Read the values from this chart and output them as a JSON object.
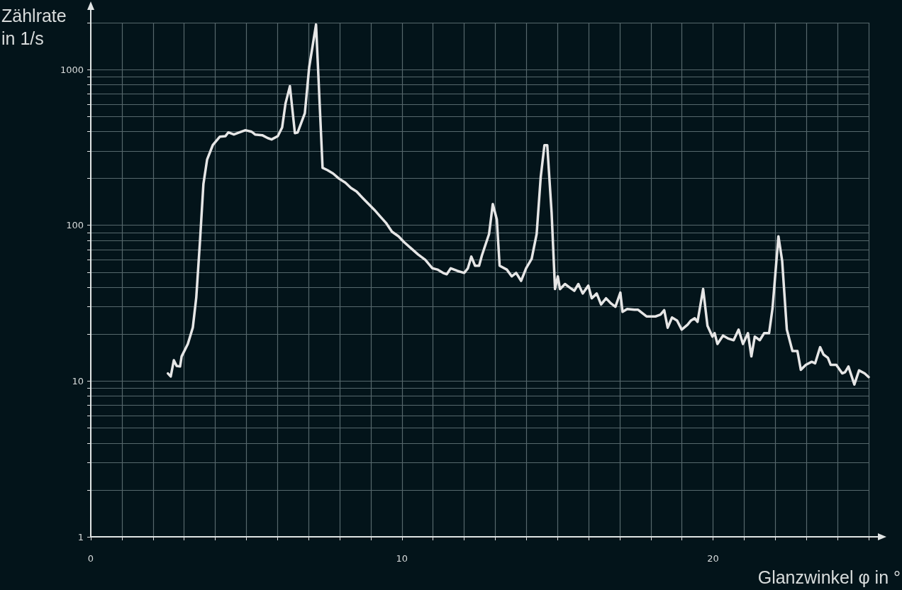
{
  "chart_data": {
    "type": "line",
    "xlabel": "Glanzwinkel φ in °",
    "ylabel": "Zählrate in 1/s",
    "log": "y",
    "grid": true,
    "marker": "none",
    "line_style": "solid",
    "xlim": [
      0,
      25
    ],
    "ylim": [
      1,
      2000
    ],
    "xticks": [
      0,
      {
        "value": 1,
        "label": null
      },
      {
        "value": 2,
        "label": null
      },
      {
        "value": 3,
        "label": null
      },
      {
        "value": 4,
        "label": null
      },
      {
        "value": 5,
        "label": null
      },
      {
        "value": 6,
        "label": null
      },
      {
        "value": 7,
        "label": null
      },
      {
        "value": 8,
        "label": null
      },
      {
        "value": 9,
        "label": null
      },
      10,
      {
        "value": 11,
        "label": null
      },
      {
        "value": 12,
        "label": null
      },
      {
        "value": 13,
        "label": null
      },
      {
        "value": 14,
        "label": null
      },
      {
        "value": 15,
        "label": null
      },
      {
        "value": 16,
        "label": null
      },
      {
        "value": 17,
        "label": null
      },
      {
        "value": 18,
        "label": null
      },
      {
        "value": 19,
        "label": null
      },
      20,
      {
        "value": 21,
        "label": null
      },
      {
        "value": 22,
        "label": null
      },
      {
        "value": 23,
        "label": null
      },
      {
        "value": 24,
        "label": null
      },
      {
        "value": 25,
        "label": null
      }
    ],
    "yticks": [
      1,
      {
        "value": 2,
        "label": null
      },
      {
        "value": 3,
        "label": null
      },
      {
        "value": 4,
        "label": null
      },
      {
        "value": 5,
        "label": null
      },
      {
        "value": 6,
        "label": null
      },
      {
        "value": 7,
        "label": null
      },
      {
        "value": 8,
        "label": null
      },
      {
        "value": 9,
        "label": null
      },
      10,
      {
        "value": 20,
        "label": null
      },
      {
        "value": 30,
        "label": null
      },
      {
        "value": 40,
        "label": null
      },
      {
        "value": 50,
        "label": null
      },
      {
        "value": 60,
        "label": null
      },
      {
        "value": 70,
        "label": null
      },
      {
        "value": 80,
        "label": null
      },
      {
        "value": 90,
        "label": null
      },
      100,
      {
        "value": 200,
        "label": null
      },
      {
        "value": 300,
        "label": null
      },
      {
        "value": 400,
        "label": null
      },
      {
        "value": 500,
        "label": null
      },
      {
        "value": 600,
        "label": null
      },
      {
        "value": 700,
        "label": null
      },
      {
        "value": 800,
        "label": null
      },
      {
        "value": 900,
        "label": null
      },
      1000,
      {
        "value": 2000,
        "label": null
      }
    ],
    "series": [
      {
        "color": "#e6e6e6",
        "x": [
          2.48,
          2.57,
          2.67,
          2.76,
          2.87,
          2.92,
          3.12,
          3.28,
          3.39,
          3.51,
          3.62,
          3.74,
          3.92,
          4.15,
          4.33,
          4.42,
          4.6,
          4.78,
          4.97,
          5.17,
          5.28,
          5.51,
          5.69,
          5.81,
          6.01,
          6.15,
          6.26,
          6.4,
          6.56,
          6.65,
          6.88,
          7.02,
          7.24,
          7.45,
          7.61,
          7.79,
          7.97,
          8.18,
          8.36,
          8.54,
          8.75,
          8.93,
          9.11,
          9.32,
          9.5,
          9.68,
          9.89,
          10.07,
          10.3,
          10.52,
          10.75,
          10.98,
          11.14,
          11.32,
          11.44,
          11.57,
          11.78,
          12.0,
          12.12,
          12.23,
          12.35,
          12.48,
          12.57,
          12.8,
          12.92,
          13.05,
          13.14,
          13.37,
          13.53,
          13.67,
          13.83,
          13.99,
          14.17,
          14.33,
          14.46,
          14.58,
          14.67,
          14.81,
          14.92,
          15.01,
          15.08,
          15.24,
          15.38,
          15.54,
          15.67,
          15.81,
          15.99,
          16.1,
          16.26,
          16.4,
          16.56,
          16.72,
          16.86,
          17.02,
          17.09,
          17.24,
          17.47,
          17.59,
          17.86,
          18.15,
          18.31,
          18.43,
          18.54,
          18.68,
          18.84,
          18.99,
          19.18,
          19.29,
          19.41,
          19.5,
          19.68,
          19.82,
          19.98,
          20.05,
          20.14,
          20.32,
          20.5,
          20.66,
          20.82,
          20.96,
          21.12,
          21.23,
          21.34,
          21.5,
          21.64,
          21.8,
          21.91,
          22.1,
          22.22,
          22.37,
          22.55,
          22.71,
          22.82,
          22.98,
          23.17,
          23.28,
          23.44,
          23.55,
          23.69,
          23.78,
          23.96,
          24.15,
          24.24,
          24.35,
          24.54,
          24.69,
          24.87,
          25.0
        ],
        "values": [
          11.2,
          10.7,
          13.6,
          12.5,
          12.4,
          14.4,
          17.3,
          22.1,
          34.3,
          79,
          184,
          265,
          327,
          371,
          374,
          395,
          383,
          395,
          408,
          399,
          383,
          379,
          363,
          356,
          374,
          425,
          608,
          782,
          391,
          395,
          525,
          1037,
          1946,
          234,
          226,
          215,
          200,
          188,
          174,
          165,
          149,
          137,
          126,
          113,
          103,
          91,
          85,
          78,
          71,
          65,
          60,
          53,
          52,
          49.5,
          48.5,
          53,
          51,
          49.5,
          53,
          63,
          55,
          55,
          64,
          88,
          137,
          109,
          55,
          52,
          47,
          49.5,
          44,
          53,
          61,
          88,
          204,
          327,
          327,
          121,
          39,
          47,
          38.9,
          42,
          40,
          38,
          42,
          36.5,
          41,
          34,
          36.5,
          31,
          34,
          31.5,
          30,
          37,
          27.8,
          29,
          28.7,
          28.7,
          26,
          26,
          26.7,
          28.5,
          22,
          25.6,
          24.5,
          21.4,
          23,
          24.5,
          25.3,
          24,
          39,
          22.6,
          19.3,
          20.3,
          17.3,
          19.6,
          18.7,
          18.3,
          21.4,
          17.3,
          20.3,
          14.4,
          19.3,
          18.3,
          20.3,
          20.3,
          29.3,
          85,
          59,
          21.4,
          15.6,
          15.6,
          11.8,
          12.7,
          13.3,
          13,
          16.5,
          14.8,
          14.1,
          12.7,
          12.7,
          11.2,
          11.4,
          12.4,
          9.5,
          11.7,
          11.2,
          10.6
        ]
      }
    ]
  }
}
